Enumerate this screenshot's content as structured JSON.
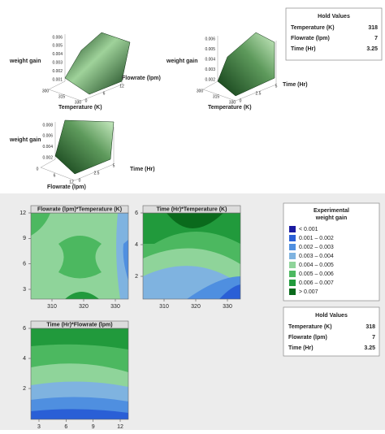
{
  "surface_plots": [
    {
      "z_label": "weight gain",
      "z_ticks": [
        "0.006",
        "0.005",
        "0.004",
        "0.003",
        "0.002",
        "0.001"
      ],
      "x_label": "Temperature (K)",
      "x_ticks": [
        300,
        315,
        330
      ],
      "y_label": "Flowrate (lpm)",
      "y_ticks": [
        0,
        6,
        12
      ]
    },
    {
      "z_label": "weight gain",
      "z_ticks": [
        "0.006",
        "0.005",
        "0.004",
        "0.003",
        "0.002"
      ],
      "x_label": "Temperature (K)",
      "x_ticks": [
        300,
        315,
        330
      ],
      "y_label": "Time (Hr)",
      "y_ticks": [
        0.0,
        2.5,
        5.0
      ]
    },
    {
      "z_label": "weight gain",
      "z_ticks": [
        "0.008",
        "0.006",
        "0.004",
        "0.002"
      ],
      "x_label": "Flowrate (lpm)",
      "x_ticks": [
        0,
        6,
        12
      ],
      "y_label": "Time (Hr)",
      "y_ticks": [
        0.0,
        2.5,
        5.0
      ]
    }
  ],
  "hold_values_top": {
    "title": "Hold Values",
    "rows": [
      [
        "Temperature (K)",
        318
      ],
      [
        "Flowrate (lpm)",
        7
      ],
      [
        "Time (Hr)",
        3.25
      ]
    ]
  },
  "contour_plots": [
    {
      "title": "Flowrate (lpm)*Temperature (K)",
      "x_ticks": [
        310,
        320,
        330
      ],
      "y_ticks": [
        3,
        6,
        9,
        12
      ]
    },
    {
      "title": "Time (Hr)*Temperature (K)",
      "x_ticks": [
        310,
        320,
        330
      ],
      "y_ticks": [
        2,
        4,
        6
      ]
    },
    {
      "title": "Time (Hr)*Flowrate (lpm)",
      "x_ticks": [
        3,
        6,
        9,
        12
      ],
      "y_ticks": [
        2,
        4,
        6
      ]
    }
  ],
  "legend": {
    "title": [
      "Experimental",
      "weight gain"
    ],
    "items": [
      {
        "label": "< 0.001",
        "color": "#1a1aa0"
      },
      {
        "label": "0.001 – 0.002",
        "color": "#2a5fd6"
      },
      {
        "label": "0.002 – 0.003",
        "color": "#4f8fe0"
      },
      {
        "label": "0.003 – 0.004",
        "color": "#7fb3e0"
      },
      {
        "label": "0.004 – 0.005",
        "color": "#8fd49a"
      },
      {
        "label": "0.005 – 0.006",
        "color": "#4cb860"
      },
      {
        "label": "0.006 – 0.007",
        "color": "#219a3c"
      },
      {
        "label": "> 0.007",
        "color": "#0a6a1c"
      }
    ]
  },
  "hold_values_bottom": {
    "title": "Hold Values",
    "rows": [
      [
        "Temperature (K)",
        318
      ],
      [
        "Flowrate (lpm)",
        7
      ],
      [
        "Time (Hr)",
        3.25
      ]
    ]
  }
}
